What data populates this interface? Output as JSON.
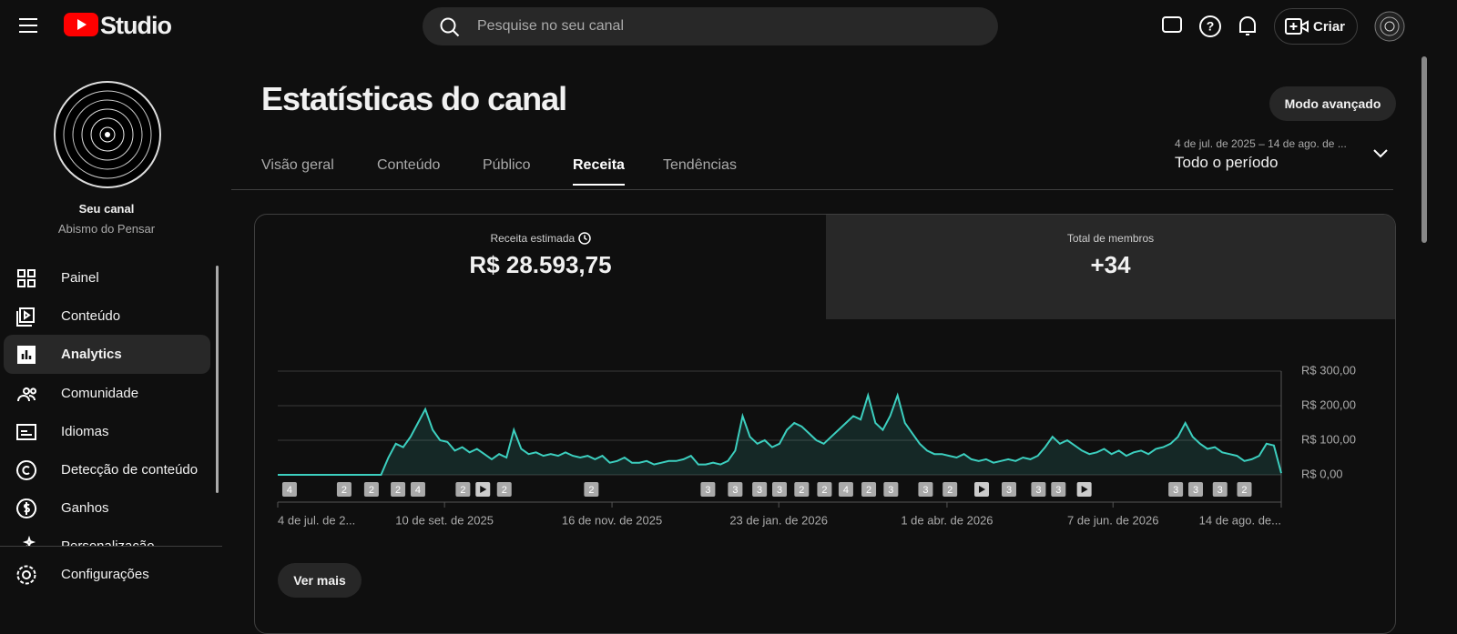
{
  "header": {
    "logo": "Studio",
    "search": "Pesquise no seu canal",
    "create": "Criar"
  },
  "sidebar": {
    "channel_label": "Seu canal",
    "channel_name": "Abismo do Pensar",
    "items": [
      "Painel",
      "Conteúdo",
      "Analytics",
      "Comunidade",
      "Idiomas",
      "Detecção de conteúdo",
      "Ganhos",
      "Personalização"
    ],
    "active": 2,
    "settings": "Configurações"
  },
  "page": {
    "title": "Estatísticas do canal",
    "advanced": "Modo avançado",
    "tabs": [
      "Visão geral",
      "Conteúdo",
      "Público",
      "Receita",
      "Tendências"
    ],
    "active_tab": 3,
    "date_range": "4 de jul. de 2025 – 14 de ago. de ...",
    "period": "Todo o período"
  },
  "cards": [
    {
      "label": "Receita estimada",
      "value": "R$ 28.593,75"
    },
    {
      "label": "Total de membros",
      "value": "+34"
    }
  ],
  "chart_data": {
    "type": "line",
    "color": "#3ccfbf",
    "grid": true,
    "values": [
      0,
      0,
      0,
      0,
      0,
      0,
      0,
      0,
      0,
      0,
      0,
      0,
      0,
      0,
      0,
      50,
      90,
      80,
      110,
      150,
      190,
      130,
      100,
      95,
      70,
      80,
      65,
      75,
      60,
      45,
      60,
      50,
      130,
      75,
      60,
      65,
      55,
      60,
      55,
      65,
      55,
      50,
      55,
      45,
      55,
      35,
      40,
      50,
      35,
      35,
      40,
      30,
      35,
      40,
      40,
      45,
      55,
      30,
      30,
      35,
      30,
      40,
      70,
      170,
      110,
      90,
      100,
      80,
      90,
      130,
      150,
      140,
      120,
      100,
      90,
      110,
      130,
      150,
      170,
      160,
      230,
      150,
      130,
      170,
      230,
      150,
      120,
      90,
      70,
      60,
      60,
      55,
      50,
      60,
      45,
      40,
      45,
      35,
      40,
      45,
      40,
      50,
      45,
      55,
      80,
      110,
      90,
      100,
      85,
      70,
      60,
      65,
      75,
      60,
      70,
      55,
      65,
      70,
      60,
      75,
      80,
      90,
      110,
      150,
      110,
      90,
      75,
      80,
      65,
      60,
      55,
      40,
      45,
      55,
      90,
      85,
      5
    ],
    "xlim": [
      0,
      136
    ],
    "ylim": [
      0,
      300
    ],
    "yticks": [
      {
        "value": 0,
        "label": "R$ 0,00"
      },
      {
        "value": 100,
        "label": "R$ 100,00"
      },
      {
        "value": 200,
        "label": "R$ 200,00"
      },
      {
        "value": 300,
        "label": "R$ 300,00"
      }
    ],
    "xticks": [
      {
        "value": 0,
        "label": "4 de jul. de 2..."
      },
      {
        "value": 22.6,
        "label": "10 de set. de 2025"
      },
      {
        "value": 45.3,
        "label": "16 de nov. de 2025"
      },
      {
        "value": 67.9,
        "label": "23 de jan. de 2026"
      },
      {
        "value": 90.7,
        "label": "1 de abr. de 2026"
      },
      {
        "value": 113.2,
        "label": "7 de jun. de 2026"
      },
      {
        "value": 136,
        "label": "14 de ago. de..."
      }
    ],
    "markers": [
      {
        "x": 1.6,
        "label": "4"
      },
      {
        "x": 9,
        "label": "2"
      },
      {
        "x": 12.7,
        "label": "2"
      },
      {
        "x": 16.3,
        "label": "2"
      },
      {
        "x": 19,
        "label": "4"
      },
      {
        "x": 25.1,
        "label": "2"
      },
      {
        "x": 27.8,
        "icon": "play"
      },
      {
        "x": 30.7,
        "label": "2"
      },
      {
        "x": 42.5,
        "label": "2"
      },
      {
        "x": 58.3,
        "label": "3"
      },
      {
        "x": 62,
        "label": "3"
      },
      {
        "x": 65.3,
        "label": "3"
      },
      {
        "x": 68,
        "label": "3"
      },
      {
        "x": 71,
        "label": "2"
      },
      {
        "x": 74.1,
        "label": "2"
      },
      {
        "x": 77,
        "label": "4"
      },
      {
        "x": 80.1,
        "label": "2"
      },
      {
        "x": 83.1,
        "label": "3"
      },
      {
        "x": 87.8,
        "label": "3"
      },
      {
        "x": 91.1,
        "label": "2"
      },
      {
        "x": 95.4,
        "icon": "play"
      },
      {
        "x": 99.1,
        "label": "3"
      },
      {
        "x": 103.1,
        "label": "3"
      },
      {
        "x": 105.8,
        "label": "3"
      },
      {
        "x": 109.3,
        "icon": "play"
      },
      {
        "x": 121.7,
        "label": "3"
      },
      {
        "x": 124.4,
        "label": "3"
      },
      {
        "x": 127.7,
        "label": "3"
      },
      {
        "x": 131,
        "label": "2"
      }
    ]
  },
  "more": "Ver mais"
}
